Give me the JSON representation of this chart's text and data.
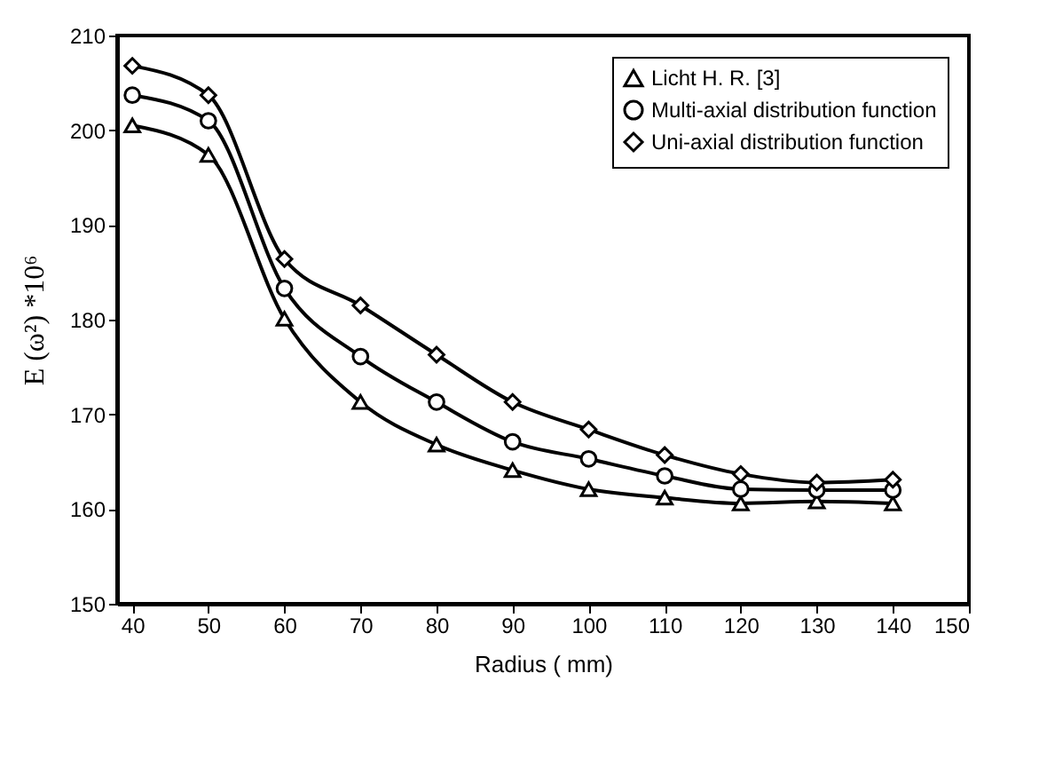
{
  "chart_data": {
    "type": "line",
    "xlabel": "Radius ( mm)",
    "ylabel": "E (ω²) *10⁶",
    "x": [
      40,
      50,
      60,
      70,
      80,
      90,
      100,
      110,
      120,
      130,
      140
    ],
    "series": [
      {
        "name": "Licht  H. R. [3]",
        "color": "#000000",
        "marker": "triangle",
        "values": [
          200.5,
          197.4,
          180.1,
          171.3,
          166.8,
          164.1,
          162.1,
          161.2,
          160.6,
          160.8,
          160.6
        ]
      },
      {
        "name": "Multi-axial distribution function",
        "color": "#000000",
        "marker": "circle",
        "values": [
          203.7,
          201,
          183.3,
          176.1,
          171.3,
          167.1,
          165.3,
          163.5,
          162.1,
          162,
          162
        ]
      },
      {
        "name": "Uni-axial distribution function",
        "color": "#000000",
        "marker": "diamond",
        "values": [
          206.8,
          203.7,
          186.4,
          181.5,
          176.3,
          171.3,
          168.4,
          165.7,
          163.7,
          162.8,
          163.1
        ]
      }
    ],
    "xlim": [
      38,
      150
    ],
    "xticks": [
      40,
      50,
      60,
      70,
      80,
      90,
      100,
      110,
      120,
      130,
      140,
      150
    ],
    "ylim": [
      150,
      210
    ],
    "yticks": [
      150,
      160,
      170,
      180,
      190,
      200,
      210
    ],
    "grid": false,
    "legend": "top right",
    "line_style": "solid"
  }
}
